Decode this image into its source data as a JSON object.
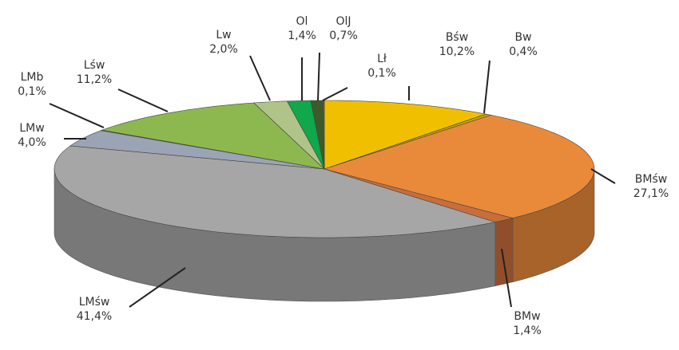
{
  "chart_data": {
    "type": "pie",
    "style": "3d",
    "title": "",
    "legend": "none",
    "slices": [
      {
        "label": "Bśw",
        "value": 10.2,
        "display": "10,2%",
        "color": "#f0c000"
      },
      {
        "label": "Bw",
        "value": 0.4,
        "display": "0,4%",
        "color": "#c8a000"
      },
      {
        "label": "BMśw",
        "value": 27.1,
        "display": "27,1%",
        "color": "#e98a3a"
      },
      {
        "label": "BMw",
        "value": 1.4,
        "display": "1,4%",
        "color": "#c86e3a"
      },
      {
        "label": "LMśw",
        "value": 41.4,
        "display": "41,4%",
        "color": "#a6a6a6"
      },
      {
        "label": "LMw",
        "value": 4.0,
        "display": "4,0%",
        "color": "#9aa4b4"
      },
      {
        "label": "LMb",
        "value": 0.1,
        "display": "0,1%",
        "color": "#6a8a4a"
      },
      {
        "label": "Lśw",
        "value": 11.2,
        "display": "11,2%",
        "color": "#8db84f"
      },
      {
        "label": "Lw",
        "value": 2.0,
        "display": "2,0%",
        "color": "#b0c48a"
      },
      {
        "label": "Ol",
        "value": 1.4,
        "display": "1,4%",
        "color": "#0fa84a"
      },
      {
        "label": "OlJ",
        "value": 0.7,
        "display": "0,7%",
        "color": "#3e5a2a"
      },
      {
        "label": "Lł",
        "value": 0.1,
        "display": "0,1%",
        "color": "#6b5a3a"
      }
    ]
  }
}
